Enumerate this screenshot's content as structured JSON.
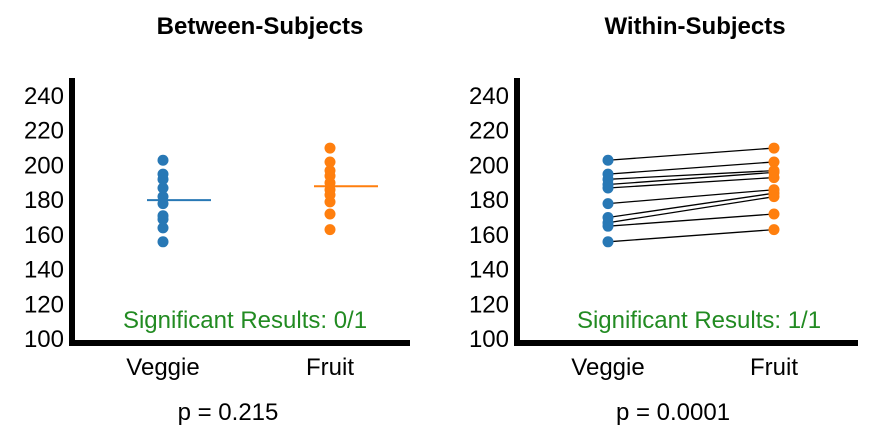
{
  "colors": {
    "veggie": "#2878b5",
    "fruit": "#ff7f0e",
    "significance_text": "#228B22",
    "axis": "#000000",
    "pair_line": "#000000"
  },
  "chart_data": [
    {
      "type": "scatter",
      "title": "Between-Subjects",
      "categories": [
        "Veggie",
        "Fruit"
      ],
      "ylim": [
        100,
        240
      ],
      "yticks": [
        100,
        120,
        140,
        160,
        180,
        200,
        220,
        240
      ],
      "series": [
        {
          "name": "Veggie",
          "values": [
            156,
            164,
            169,
            171,
            178,
            182,
            187,
            192,
            195,
            203
          ],
          "mean": 180
        },
        {
          "name": "Fruit",
          "values": [
            163,
            172,
            179,
            183,
            186,
            190,
            194,
            197,
            202,
            210
          ],
          "mean": 188
        }
      ],
      "annotation": "Significant Results: 0/1",
      "p_text": "p = 0.215",
      "grid": false,
      "paired": false
    },
    {
      "type": "scatter",
      "title": "Within-Subjects",
      "categories": [
        "Veggie",
        "Fruit"
      ],
      "ylim": [
        100,
        240
      ],
      "yticks": [
        100,
        120,
        140,
        160,
        180,
        200,
        220,
        240
      ],
      "series": [
        {
          "name": "Veggie",
          "values": [
            156,
            165,
            167,
            170,
            178,
            187,
            189,
            192,
            195,
            203
          ]
        },
        {
          "name": "Fruit",
          "values": [
            163,
            172,
            182,
            184,
            186,
            193,
            196,
            197,
            202,
            210
          ]
        }
      ],
      "pairs": [
        [
          156,
          163
        ],
        [
          165,
          172
        ],
        [
          167,
          182
        ],
        [
          170,
          184
        ],
        [
          178,
          186
        ],
        [
          187,
          193
        ],
        [
          189,
          196
        ],
        [
          192,
          197
        ],
        [
          195,
          202
        ],
        [
          203,
          210
        ]
      ],
      "annotation": "Significant Results: 1/1",
      "p_text": "p = 0.0001",
      "grid": false,
      "paired": true
    }
  ]
}
